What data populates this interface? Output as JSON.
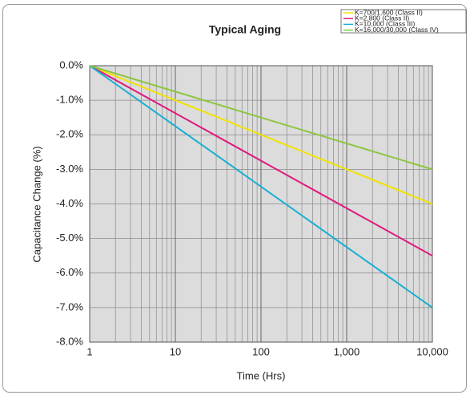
{
  "chart_data": {
    "type": "line",
    "title": "Typical Aging",
    "xlabel": "Time (Hrs)",
    "ylabel": "Capacitance Change (%)",
    "x": [
      1,
      10000
    ],
    "series": [
      {
        "name": "K=700/1,600 (Class II)",
        "color": "#f2e200",
        "values": [
          0,
          -4.0
        ]
      },
      {
        "name": "K=2,800 (Class II)",
        "color": "#e0197d",
        "values": [
          0,
          -5.5
        ]
      },
      {
        "name": "K=10,000 (Class III)",
        "color": "#19b0d2",
        "values": [
          0,
          -7.0
        ]
      },
      {
        "name": "K=16,000/30,000 (Class IV)",
        "color": "#8cc63f",
        "values": [
          0,
          -3.0
        ]
      }
    ],
    "xscale": "log",
    "xlim": [
      1,
      10000
    ],
    "xticks": [
      1,
      10,
      100,
      {
        "value": 1000,
        "label": "1,000"
      },
      {
        "value": 10000,
        "label": "10,000"
      }
    ],
    "ylim": [
      -8,
      0
    ],
    "yticks": [
      {
        "value": 0,
        "label": "0.0%"
      },
      {
        "value": -1,
        "label": "-1.0%"
      },
      {
        "value": -2,
        "label": "-2.0%"
      },
      {
        "value": -3,
        "label": "-3.0%"
      },
      {
        "value": -4,
        "label": "-4.0%"
      },
      {
        "value": -5,
        "label": "-5.0%"
      },
      {
        "value": -6,
        "label": "-6.0%"
      },
      {
        "value": -7,
        "label": "-7.0%"
      },
      {
        "value": -8,
        "label": "-8.0%"
      }
    ],
    "grid": true,
    "legend": "upper right"
  }
}
